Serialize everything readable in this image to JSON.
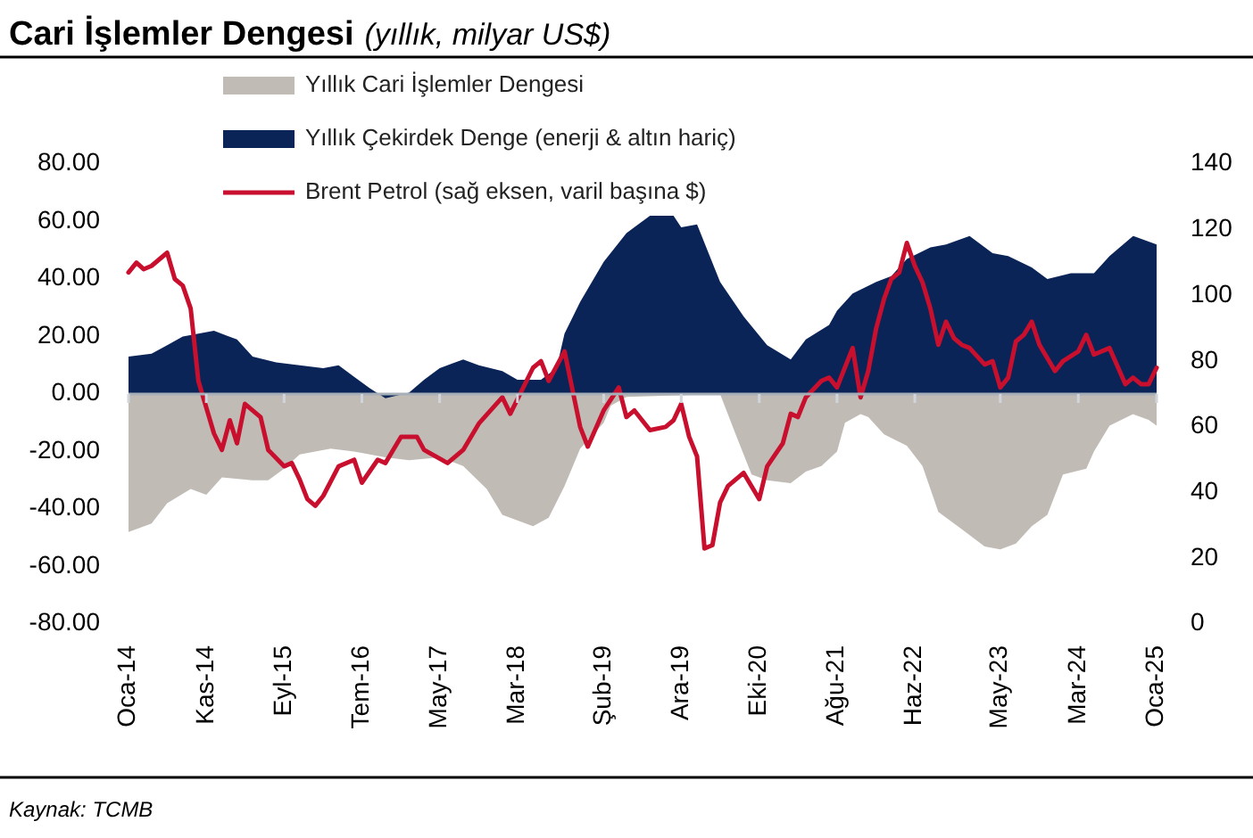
{
  "chart_data": {
    "type": "area",
    "title": "Cari İşlemler Dengesi",
    "subtitle": "(yıllık, milyar US$)",
    "annotations": [
      "Kaynak: TCMB"
    ],
    "xlim": [
      "2014-01",
      "2025-01"
    ],
    "xticks": [
      {
        "value": "2014-01",
        "label": "Oca-14"
      },
      {
        "value": "2014-11",
        "label": "Kas-14"
      },
      {
        "value": "2015-09",
        "label": "Eyl-15"
      },
      {
        "value": "2016-07",
        "label": "Tem-16"
      },
      {
        "value": "2017-05",
        "label": "May-17"
      },
      {
        "value": "2018-03",
        "label": "Mar-18"
      },
      {
        "value": "2019-02",
        "label": "Şub-19"
      },
      {
        "value": "2019-12",
        "label": "Ara-19"
      },
      {
        "value": "2020-10",
        "label": "Eki-20"
      },
      {
        "value": "2021-08",
        "label": "Ağu-21"
      },
      {
        "value": "2022-06",
        "label": "Haz-22"
      },
      {
        "value": "2023-05",
        "label": "May-23"
      },
      {
        "value": "2024-03",
        "label": "Mar-24"
      },
      {
        "value": "2025-01",
        "label": "Oca-25"
      }
    ],
    "ylim": [
      -80,
      80
    ],
    "yticks": [
      {
        "value": -80,
        "label": "-80.00"
      },
      {
        "value": -60,
        "label": "-60.00"
      },
      {
        "value": -40,
        "label": "-40.00"
      },
      {
        "value": -20,
        "label": "-20.00"
      },
      {
        "value": 0,
        "label": "0.00"
      },
      {
        "value": 20,
        "label": "20.00"
      },
      {
        "value": 40,
        "label": "40.00"
      },
      {
        "value": 60,
        "label": "60.00"
      },
      {
        "value": 80,
        "label": "80.00"
      }
    ],
    "y2lim": [
      0,
      140
    ],
    "y2ticks": [
      0,
      20,
      40,
      60,
      80,
      100,
      120,
      140
    ],
    "legend": "top",
    "grid": false,
    "ref_lines": [
      {
        "axis": "y",
        "value": 0,
        "color": "#a6aeb8"
      }
    ],
    "series": [
      {
        "name": "Yıllık Cari İşlemler Dengesi",
        "color": "#c0bbb5",
        "x": [
          "2014-01",
          "2014-04",
          "2014-06",
          "2014-09",
          "2014-11",
          "2015-01",
          "2015-05",
          "2015-07",
          "2015-09",
          "2015-11",
          "2016-03",
          "2016-06",
          "2016-10",
          "2017-01",
          "2017-05",
          "2017-08",
          "2017-11",
          "2018-01",
          "2018-05",
          "2018-07",
          "2018-09",
          "2018-11",
          "2019-02",
          "2019-03",
          "2019-05",
          "2020-05",
          "2020-07",
          "2020-09",
          "2020-11",
          "2021-02",
          "2021-04",
          "2021-06",
          "2021-08",
          "2021-09",
          "2021-11",
          "2021-12",
          "2022-02",
          "2022-05",
          "2022-07",
          "2022-09",
          "2022-12",
          "2023-03",
          "2023-05",
          "2023-07",
          "2023-09",
          "2023-11",
          "2024-01",
          "2024-04",
          "2024-05",
          "2024-07",
          "2024-10",
          "2024-12",
          "2025-01"
        ],
        "values": [
          -48,
          -45,
          -38,
          -33,
          -35,
          -29,
          -30,
          -30,
          -26,
          -21,
          -19,
          -20,
          -22,
          -23,
          -22,
          -25,
          -33,
          -42,
          -46,
          -43,
          -32,
          -19,
          -10,
          -4,
          -1,
          0,
          -14,
          -28,
          -30,
          -31,
          -27,
          -25,
          -20,
          -10,
          -7,
          -8,
          -14,
          -18,
          -25,
          -41,
          -47,
          -53,
          -54,
          -52,
          -46,
          -42,
          -28,
          -26,
          -20,
          -11,
          -7,
          -9,
          -11
        ]
      },
      {
        "name": "Yıllık Çekirdek Denge (enerji & altın hariç)",
        "color": "#0a2458",
        "x": [
          "2014-01",
          "2014-04",
          "2014-06",
          "2014-08",
          "2014-12",
          "2015-03",
          "2015-05",
          "2015-08",
          "2015-11",
          "2016-02",
          "2016-04",
          "2016-06",
          "2016-08",
          "2016-10",
          "2017-01",
          "2017-03",
          "2017-05",
          "2017-08",
          "2017-10",
          "2018-01",
          "2018-03",
          "2018-06",
          "2018-08",
          "2018-09",
          "2018-11",
          "2019-02",
          "2019-05",
          "2019-08",
          "2019-11",
          "2019-12",
          "2020-02",
          "2020-05",
          "2020-08",
          "2020-11",
          "2021-02",
          "2021-04",
          "2021-07",
          "2021-08",
          "2021-10",
          "2022-01",
          "2022-03",
          "2022-05",
          "2022-08",
          "2022-10",
          "2023-01",
          "2023-04",
          "2023-06",
          "2023-09",
          "2023-11",
          "2024-02",
          "2024-05",
          "2024-07",
          "2024-10",
          "2025-01"
        ],
        "values": [
          13,
          14,
          17,
          20,
          22,
          19,
          13,
          11,
          10,
          9,
          10,
          6,
          2,
          -1.5,
          0.5,
          5,
          9,
          12,
          10,
          8,
          5,
          5,
          9,
          21,
          32,
          46,
          56,
          62,
          62,
          58,
          59,
          39,
          27,
          17,
          12,
          19,
          24,
          29,
          35,
          39,
          41,
          47,
          51,
          52,
          55,
          49,
          48,
          44,
          40,
          42,
          42,
          48,
          55,
          52
        ]
      },
      {
        "name": "Brent Petrol (sağ eksen, varil başına $)",
        "type": "line",
        "axis": "y2",
        "color": "#c8102e",
        "line_style": "solid",
        "x": [
          "2014-01",
          "2014-02",
          "2014-03",
          "2014-04",
          "2014-06",
          "2014-07",
          "2014-08",
          "2014-09",
          "2014-10",
          "2014-12",
          "2015-01",
          "2015-02",
          "2015-03",
          "2015-04",
          "2015-06",
          "2015-07",
          "2015-09",
          "2015-10",
          "2015-11",
          "2015-12",
          "2016-01",
          "2016-02",
          "2016-04",
          "2016-06",
          "2016-07",
          "2016-09",
          "2016-10",
          "2016-12",
          "2017-02",
          "2017-03",
          "2017-06",
          "2017-08",
          "2017-10",
          "2018-01",
          "2018-02",
          "2018-05",
          "2018-06",
          "2018-07",
          "2018-09",
          "2018-11",
          "2018-12",
          "2019-02",
          "2019-04",
          "2019-05",
          "2019-06",
          "2019-08",
          "2019-10",
          "2019-11",
          "2019-12",
          "2020-01",
          "2020-02",
          "2020-03",
          "2020-04",
          "2020-05",
          "2020-06",
          "2020-08",
          "2020-10",
          "2020-11",
          "2021-01",
          "2021-02",
          "2021-03",
          "2021-04",
          "2021-06",
          "2021-07",
          "2021-08",
          "2021-10",
          "2021-11",
          "2021-12",
          "2022-01",
          "2022-02",
          "2022-03",
          "2022-04",
          "2022-05",
          "2022-06",
          "2022-07",
          "2022-08",
          "2022-09",
          "2022-10",
          "2022-11",
          "2022-12",
          "2023-01",
          "2023-03",
          "2023-04",
          "2023-05",
          "2023-06",
          "2023-07",
          "2023-08",
          "2023-09",
          "2023-10",
          "2023-12",
          "2024-01",
          "2024-03",
          "2024-04",
          "2024-05",
          "2024-07",
          "2024-09",
          "2024-10",
          "2024-11",
          "2024-12",
          "2025-01"
        ],
        "values": [
          107,
          110,
          108,
          109,
          113,
          105,
          103,
          96,
          74,
          58,
          53,
          62,
          55,
          67,
          63,
          53,
          48,
          49,
          44,
          38,
          36,
          39,
          48,
          50,
          43,
          50,
          49,
          57,
          57,
          53,
          49,
          53,
          61,
          69,
          64,
          78,
          80,
          74,
          83,
          60,
          54,
          65,
          72,
          63,
          65,
          59,
          60,
          62,
          67,
          57,
          51,
          23,
          24,
          37,
          42,
          46,
          38,
          48,
          55,
          64,
          63,
          69,
          74,
          75,
          72,
          84,
          69,
          77,
          90,
          99,
          105,
          107,
          116,
          109,
          104,
          96,
          85,
          92,
          87,
          85,
          84,
          79,
          80,
          72,
          75,
          86,
          88,
          92,
          85,
          77,
          80,
          83,
          88,
          82,
          84,
          73,
          75,
          73,
          73,
          78
        ]
      }
    ]
  }
}
